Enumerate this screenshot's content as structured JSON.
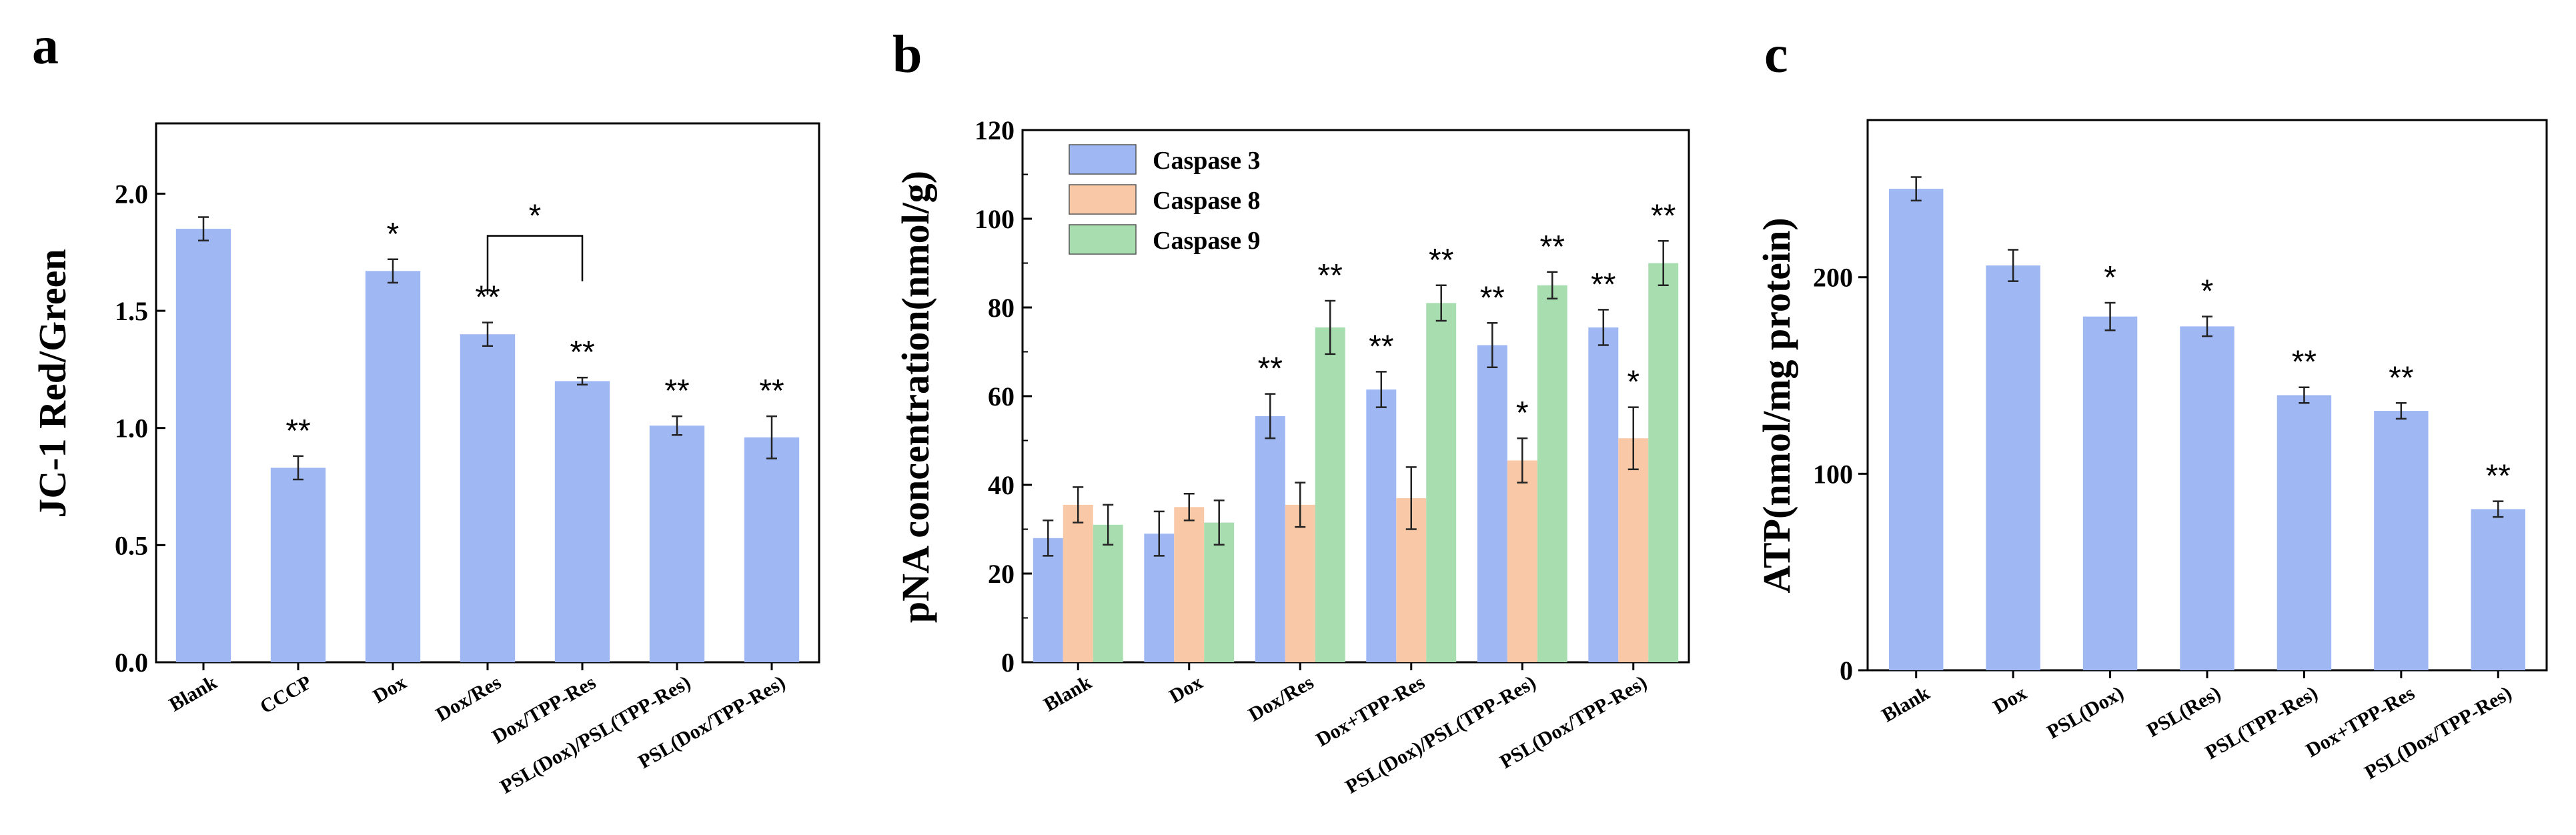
{
  "chart_data": [
    {
      "panel": "a",
      "type": "bar",
      "title": "",
      "xlabel": "",
      "ylabel": "JC-1 Red/Green",
      "ylim": [
        0,
        2.3
      ],
      "yticks": [
        "0.0",
        "0.5",
        "1.0",
        "1.5",
        "2.0"
      ],
      "categories": [
        "Blank",
        "CCCP",
        "Dox",
        "Dox/Res",
        "Dox/TPP-Res",
        "PSL(Dox)/PSL(TPP-Res)",
        "PSL(Dox/TPP-Res)"
      ],
      "series": [
        {
          "name": "JC-1",
          "color": "#9fb8f4",
          "values": [
            1.85,
            0.83,
            1.67,
            1.4,
            1.2,
            1.01,
            0.96
          ],
          "errors": [
            0.05,
            0.05,
            0.05,
            0.05,
            0.015,
            0.04,
            0.09
          ],
          "significance": [
            "",
            "**",
            "*",
            "**",
            "**",
            "**",
            "**"
          ]
        }
      ],
      "brackets": [
        {
          "from": 3,
          "to": 4,
          "label": "*"
        }
      ]
    },
    {
      "panel": "b",
      "type": "bar",
      "title": "",
      "xlabel": "",
      "ylabel": "pNA concentration(nmol/g)",
      "ylim": [
        0,
        120
      ],
      "yticks": [
        "0",
        "20",
        "40",
        "60",
        "80",
        "100",
        "120"
      ],
      "categories": [
        "Blank",
        "Dox",
        "Dox/Res",
        "Dox+TPP-Res",
        "PSL(Dox)/PSL(TPP-Res)",
        "PSL(Dox/TPP-Res)"
      ],
      "legend": {
        "position": "top-left"
      },
      "series": [
        {
          "name": "Caspase 3",
          "color": "#9fb8f4",
          "values": [
            28,
            29,
            55.5,
            61.5,
            71.5,
            75.5
          ],
          "errors": [
            4,
            5,
            5,
            4,
            5,
            4
          ],
          "significance": [
            "",
            "",
            "**",
            "**",
            "**",
            "**"
          ]
        },
        {
          "name": "Caspase 8",
          "color": "#f9c9a7",
          "values": [
            35.5,
            35,
            35.5,
            37,
            45.5,
            50.5
          ],
          "errors": [
            4,
            3,
            5,
            7,
            5,
            7
          ],
          "significance": [
            "",
            "",
            "",
            "",
            "*",
            "*"
          ]
        },
        {
          "name": "Caspase 9",
          "color": "#a8ddb0",
          "values": [
            31,
            31.5,
            75.5,
            81,
            85,
            90
          ],
          "errors": [
            4.5,
            5,
            6,
            4,
            3,
            5
          ],
          "significance": [
            "",
            "",
            "**",
            "**",
            "**",
            "**"
          ]
        }
      ]
    },
    {
      "panel": "c",
      "type": "bar",
      "title": "",
      "xlabel": "",
      "ylabel": "ATP(nmol/mg protein)",
      "ylim": [
        0,
        280
      ],
      "yticks": [
        "0",
        "100",
        "200"
      ],
      "categories": [
        "Blank",
        "Dox",
        "PSL(Dox)",
        "PSL(Res)",
        "PSL(TPP-Res)",
        "Dox+TPP-Res",
        "PSL(Dox/TPP-Res)"
      ],
      "series": [
        {
          "name": "ATP",
          "color": "#9fb8f4",
          "values": [
            245,
            206,
            180,
            175,
            140,
            132,
            82
          ],
          "errors": [
            6,
            8,
            7,
            5,
            4,
            4,
            4
          ],
          "significance": [
            "",
            "",
            "*",
            "*",
            "**",
            "**",
            "**"
          ]
        }
      ]
    }
  ]
}
